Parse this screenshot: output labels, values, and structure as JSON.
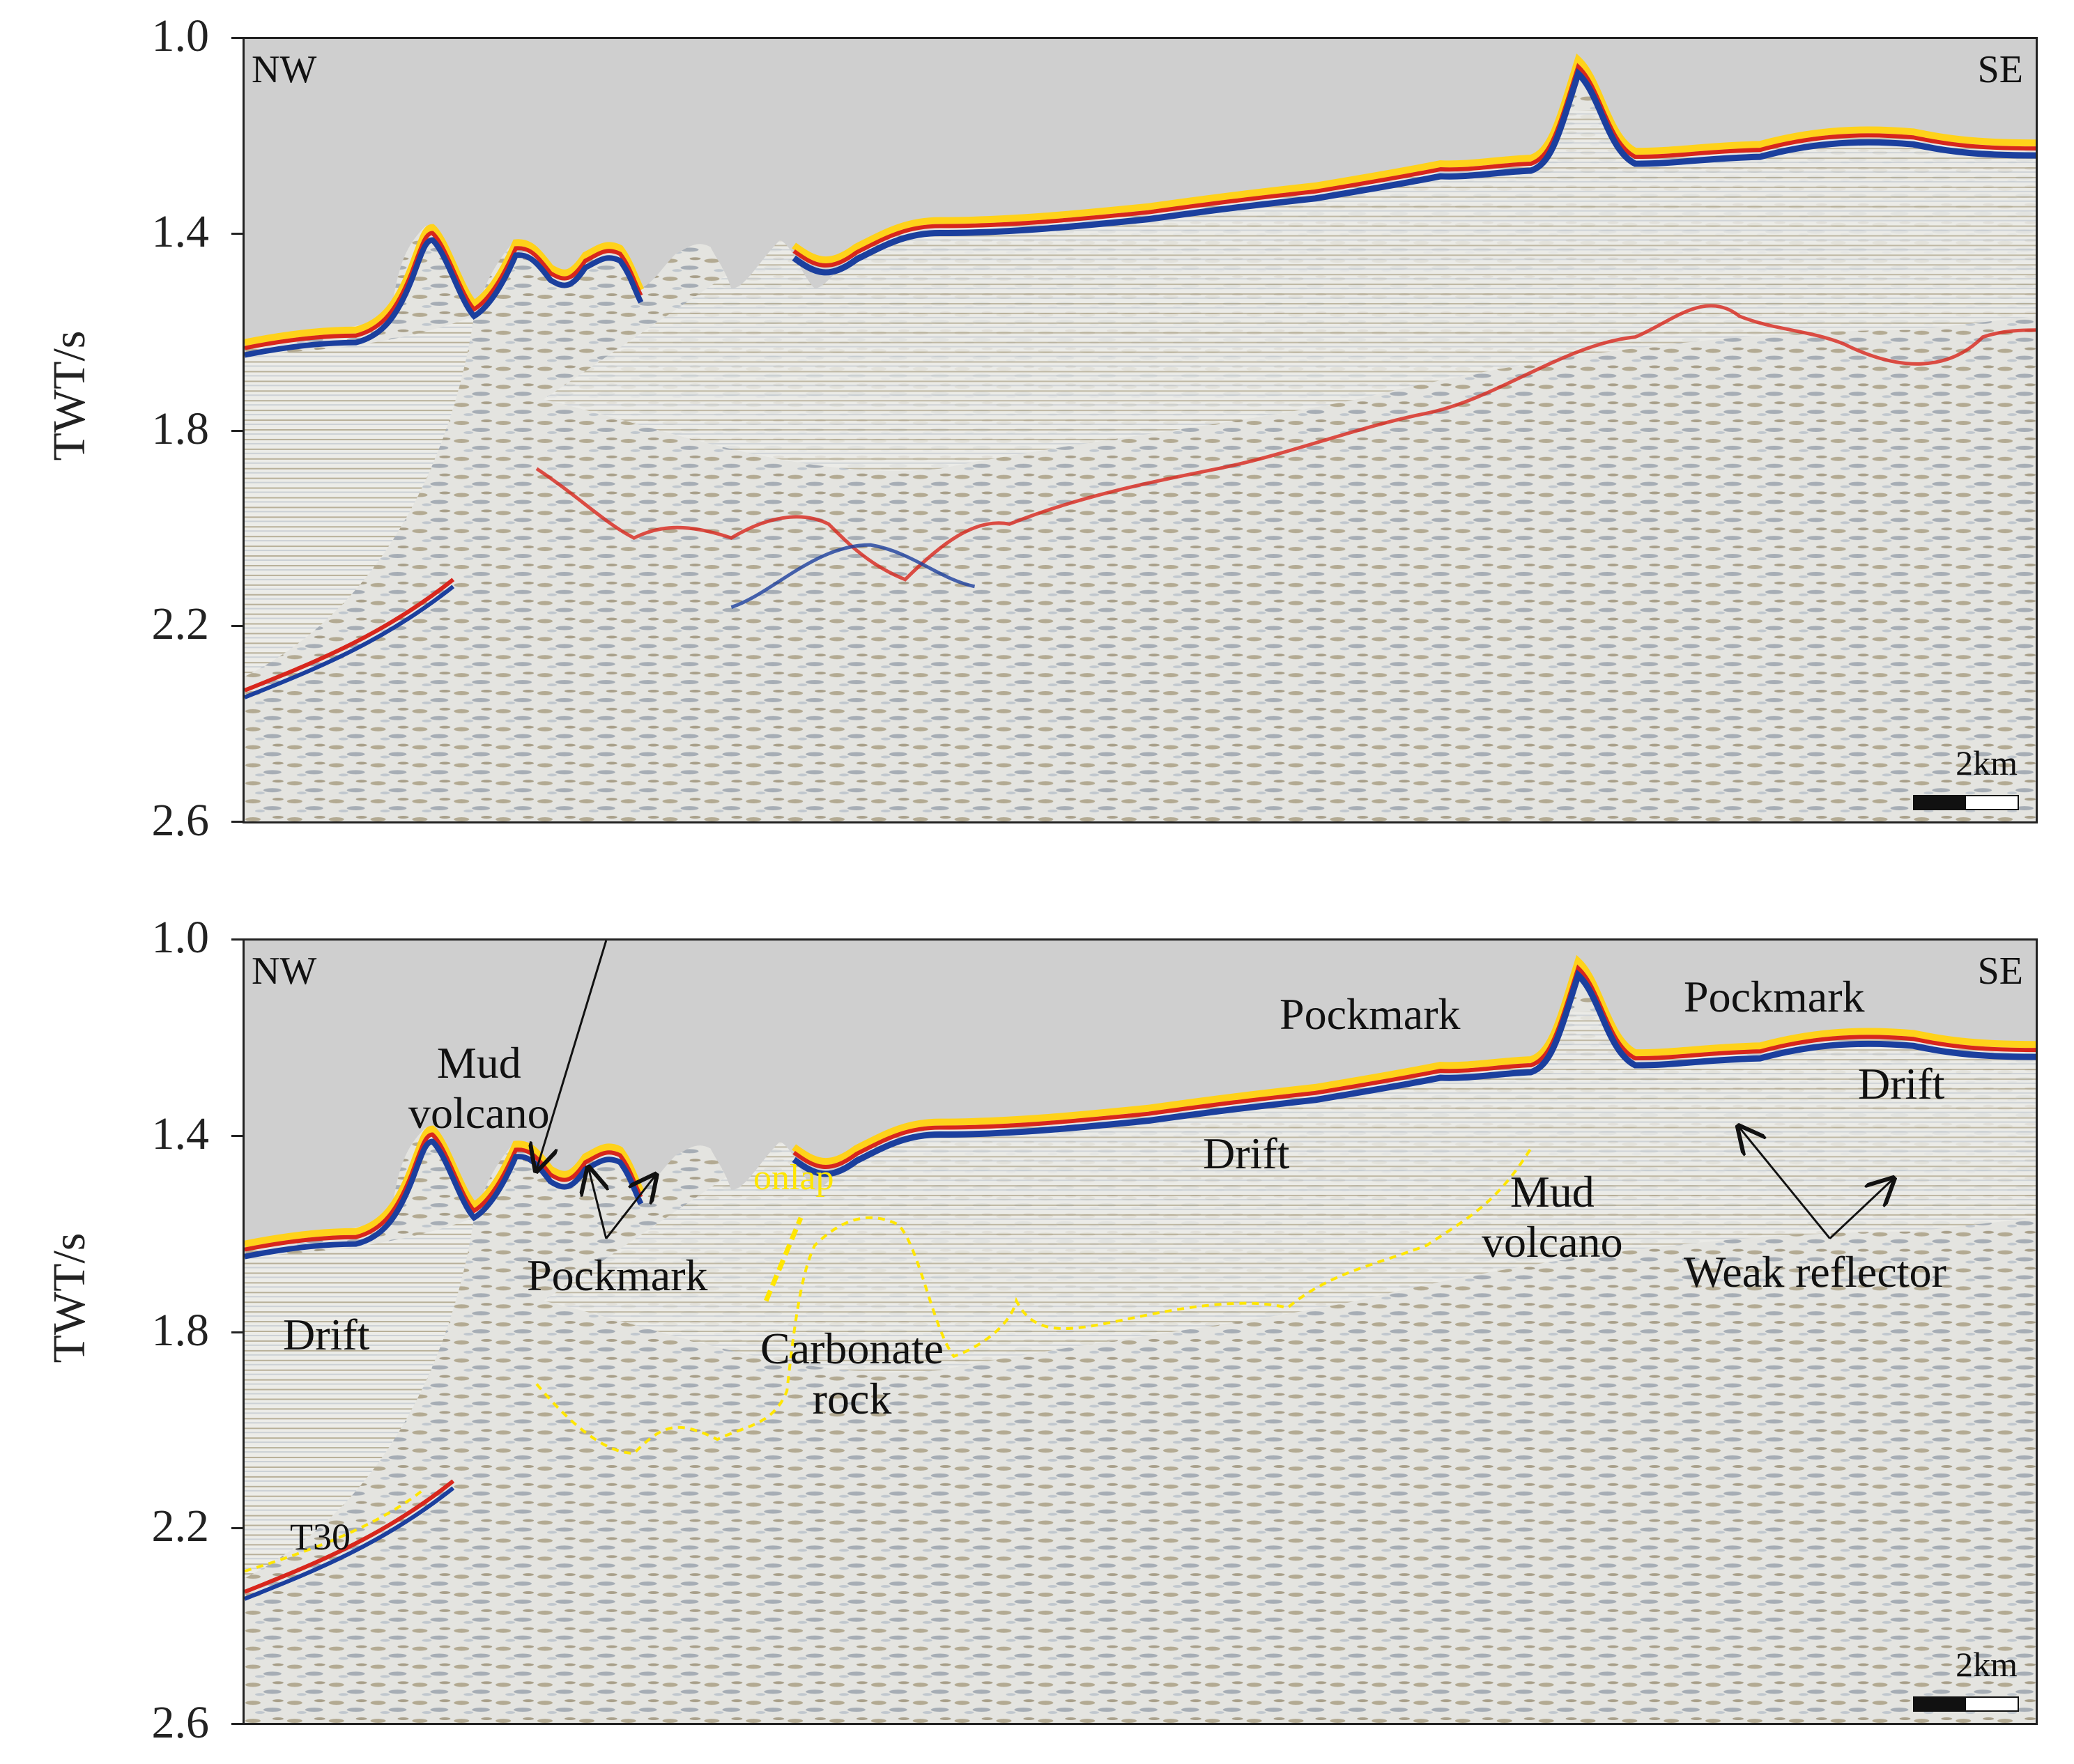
{
  "panels": [
    {
      "id": "top",
      "y_axis_label": "TWT/s",
      "y_ticks": [
        "1.0",
        "1.4",
        "1.8",
        "2.2",
        "2.6"
      ],
      "corner_left": "NW",
      "corner_right": "SE",
      "scale_label": "2km"
    },
    {
      "id": "bottom",
      "y_axis_label": "TWT/s",
      "y_ticks": [
        "1.0",
        "1.4",
        "1.8",
        "2.2",
        "2.6"
      ],
      "corner_left": "NW",
      "corner_right": "SE",
      "scale_label": "2km",
      "annotations": {
        "mud_volcano_1": "Mud\nvolcano",
        "pockmark_1": "Pockmark",
        "onlap": "onlap",
        "drift_1": "Drift",
        "carbonate_rock": "Carbonate\nrock",
        "t30": "T30",
        "drift_2": "Drift",
        "pockmark_2": "Pockmark",
        "pockmark_3": "Pockmark",
        "mud_volcano_2": "Mud\nvolcano",
        "drift_3": "Drift",
        "weak_reflector": "Weak reflector"
      }
    }
  ],
  "colors": {
    "water": "#cfcfcf",
    "seafloor_yellow": "#ffd21a",
    "seafloor_red": "#d8261c",
    "seafloor_blue": "#1b3f9e",
    "sediment_brown": "#6b5a32",
    "horizon_yellow": "#ffe600"
  }
}
